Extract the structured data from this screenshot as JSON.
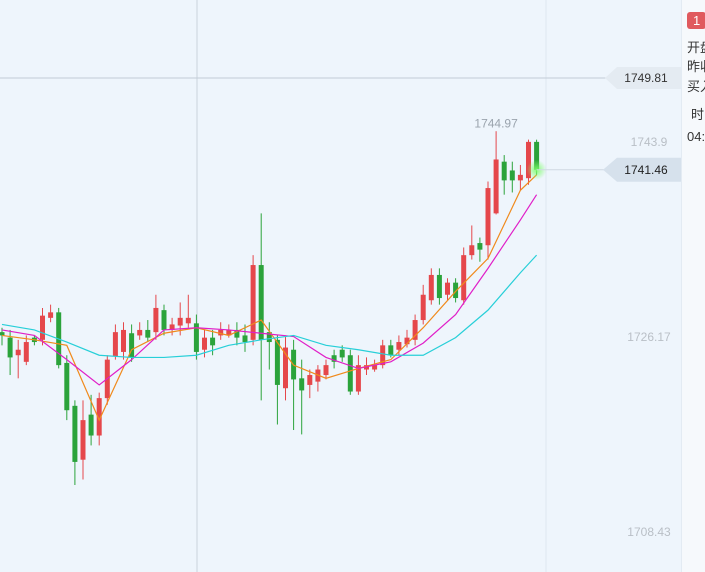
{
  "chart_data": {
    "type": "candlestick",
    "up_color": "#e5474b",
    "down_color": "#2ba33b",
    "open": [
      1726.7,
      1726.2,
      1724.6,
      1724.0,
      1726.2,
      1726.0,
      1728.0,
      1728.5,
      1723.9,
      1720.0,
      1715.1,
      1719.2,
      1717.3,
      1720.7,
      1724.5,
      1724.9,
      1726.6,
      1726.4,
      1726.9,
      1726.7,
      1728.7,
      1726.9,
      1727.3,
      1727.5,
      1727.5,
      1725.1,
      1726.2,
      1726.4,
      1726.4,
      1726.9,
      1726.4,
      1726.0,
      1732.8,
      1726.7,
      1726.0,
      1721.6,
      1725.1,
      1722.5,
      1721.9,
      1722.2,
      1722.8,
      1724.6,
      1725.1,
      1724.6,
      1721.3,
      1723.3,
      1723.3,
      1723.7,
      1725.5,
      1725.1,
      1725.6,
      1726.0,
      1727.8,
      1729.6,
      1731.9,
      1730.1,
      1731.2,
      1729.6,
      1733.7,
      1734.8,
      1734.6,
      1737.5,
      1742.2,
      1741.4,
      1740.5,
      1740.7,
      1744.0
    ],
    "high": [
      1727.1,
      1726.9,
      1726.0,
      1726.4,
      1726.4,
      1728.9,
      1729.2,
      1728.9,
      1724.6,
      1720.5,
      1720.5,
      1721.0,
      1721.2,
      1724.6,
      1727.4,
      1727.6,
      1727.4,
      1727.6,
      1727.8,
      1730.1,
      1729.2,
      1728.0,
      1729.4,
      1730.1,
      1728.3,
      1726.9,
      1726.9,
      1727.6,
      1727.4,
      1727.6,
      1727.4,
      1733.7,
      1737.5,
      1727.6,
      1726.4,
      1726.4,
      1726.0,
      1724.2,
      1723.3,
      1723.7,
      1724.2,
      1725.1,
      1725.5,
      1725.1,
      1724.6,
      1724.4,
      1724.2,
      1726.0,
      1726.0,
      1726.4,
      1726.9,
      1728.3,
      1731.0,
      1732.5,
      1732.5,
      1731.6,
      1731.6,
      1734.4,
      1736.4,
      1735.3,
      1740.4,
      1744.97,
      1742.8,
      1742.2,
      1741.9,
      1744.2,
      1744.2
    ],
    "low": [
      1725.5,
      1722.8,
      1722.5,
      1723.7,
      1725.5,
      1725.5,
      1727.6,
      1723.4,
      1718.7,
      1712.8,
      1713.3,
      1716.4,
      1716.4,
      1720.1,
      1724.2,
      1724.2,
      1724.0,
      1726.0,
      1725.8,
      1726.0,
      1726.4,
      1726.4,
      1726.4,
      1727.1,
      1724.2,
      1724.4,
      1724.6,
      1726.0,
      1726.2,
      1725.5,
      1724.9,
      1725.5,
      1720.5,
      1723.3,
      1718.3,
      1720.5,
      1717.8,
      1717.4,
      1720.7,
      1721.3,
      1722.4,
      1723.4,
      1724.0,
      1721.0,
      1721.0,
      1722.8,
      1723.1,
      1723.4,
      1724.4,
      1724.6,
      1725.3,
      1725.5,
      1727.4,
      1729.2,
      1729.2,
      1729.6,
      1729.4,
      1729.2,
      1733.3,
      1733.1,
      1733.3,
      1737.4,
      1739.2,
      1739.4,
      1739.6,
      1740.1,
      1741.0
    ],
    "close": [
      1726.4,
      1724.4,
      1725.1,
      1725.8,
      1725.8,
      1728.2,
      1728.5,
      1723.7,
      1719.6,
      1714.9,
      1718.7,
      1717.3,
      1720.7,
      1724.2,
      1726.7,
      1726.9,
      1724.4,
      1726.9,
      1726.2,
      1728.9,
      1726.9,
      1727.4,
      1728.0,
      1728.0,
      1724.9,
      1726.2,
      1725.5,
      1726.9,
      1726.9,
      1726.2,
      1725.8,
      1732.8,
      1726.0,
      1725.8,
      1721.9,
      1725.3,
      1722.4,
      1721.4,
      1722.8,
      1723.3,
      1723.7,
      1724.0,
      1724.4,
      1721.3,
      1723.7,
      1723.7,
      1723.7,
      1725.5,
      1724.6,
      1725.8,
      1726.2,
      1727.8,
      1730.1,
      1731.9,
      1729.8,
      1731.2,
      1729.8,
      1733.7,
      1734.6,
      1734.2,
      1739.8,
      1742.4,
      1740.5,
      1740.5,
      1741.0,
      1744.0,
      1741.46
    ],
    "ma_lines": [
      {
        "color": "#f08a1c",
        "x": [
          0,
          4,
          8,
          12,
          16,
          20,
          24,
          28,
          32,
          36,
          40,
          44,
          48,
          52,
          56,
          60,
          64,
          66
        ],
        "values": [
          1726.4,
          1726.0,
          1725.5,
          1718.7,
          1725.1,
          1726.6,
          1727.1,
          1726.4,
          1727.8,
          1723.7,
          1722.5,
          1723.4,
          1724.2,
          1727.1,
          1730.4,
          1733.4,
          1739.6,
          1741.0
        ]
      },
      {
        "color": "#e01fc8",
        "x": [
          0,
          4,
          8,
          12,
          16,
          20,
          24,
          28,
          32,
          36,
          40,
          44,
          48,
          52,
          56,
          60,
          64,
          66
        ],
        "values": [
          1726.9,
          1726.4,
          1724.2,
          1721.9,
          1724.2,
          1726.9,
          1727.1,
          1726.9,
          1726.6,
          1726.3,
          1724.4,
          1723.4,
          1724.0,
          1725.7,
          1728.3,
          1732.5,
          1736.9,
          1739.2
        ]
      },
      {
        "color": "#27cfd8",
        "x": [
          0,
          4,
          8,
          12,
          16,
          20,
          24,
          28,
          32,
          36,
          40,
          44,
          48,
          52,
          56,
          60,
          64,
          66
        ],
        "values": [
          1727.4,
          1726.9,
          1725.8,
          1724.6,
          1724.4,
          1724.4,
          1724.6,
          1725.5,
          1726.0,
          1726.4,
          1725.5,
          1725.1,
          1724.6,
          1724.6,
          1726.2,
          1728.7,
          1732.1,
          1733.7
        ]
      }
    ],
    "crosshair_price": 1749.81,
    "ylim": [
      1704.89,
      1756.9
    ],
    "yticks": [
      1708.43,
      1726.17,
      1743.9
    ],
    "grid": false
  },
  "side_panel": {
    "badge": "1",
    "rows": [
      "开盘",
      "昨收",
      "买入"
    ],
    "time_label": "时",
    "time": "04:"
  }
}
